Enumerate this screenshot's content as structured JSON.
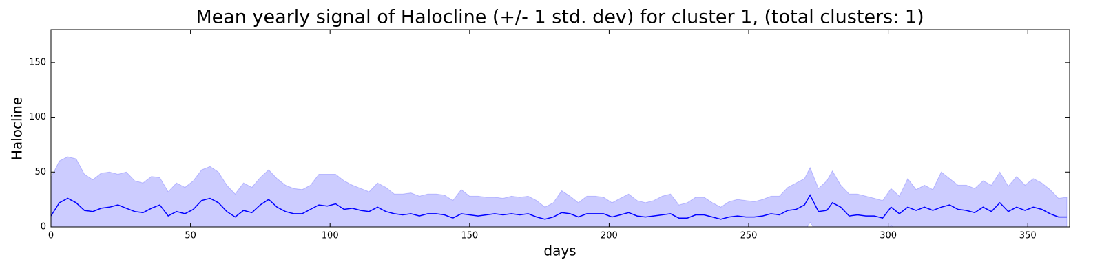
{
  "chart_data": {
    "type": "line",
    "title": "Mean yearly signal of Halocline (+/- 1 std. dev) for cluster 1, (total clusters: 1)",
    "xlabel": "days",
    "ylabel": "Halocline",
    "x": [
      0,
      3,
      6,
      9,
      12,
      15,
      18,
      21,
      24,
      27,
      30,
      33,
      36,
      39,
      42,
      45,
      48,
      51,
      54,
      57,
      60,
      63,
      66,
      69,
      72,
      75,
      78,
      81,
      84,
      87,
      90,
      93,
      96,
      99,
      102,
      105,
      108,
      111,
      114,
      117,
      120,
      123,
      126,
      129,
      132,
      135,
      138,
      141,
      144,
      147,
      150,
      153,
      156,
      159,
      162,
      165,
      168,
      171,
      174,
      177,
      180,
      183,
      186,
      189,
      192,
      195,
      198,
      201,
      204,
      207,
      210,
      213,
      216,
      219,
      222,
      225,
      228,
      231,
      234,
      237,
      240,
      243,
      246,
      249,
      252,
      255,
      258,
      261,
      264,
      267,
      270,
      272,
      275,
      278,
      280,
      283,
      286,
      289,
      292,
      295,
      298,
      301,
      304,
      307,
      310,
      313,
      316,
      319,
      322,
      325,
      328,
      331,
      334,
      337,
      340,
      343,
      346,
      349,
      352,
      355,
      358,
      361,
      364
    ],
    "series": [
      {
        "color": "#0000ff",
        "values": [
          10,
          22,
          26,
          22,
          15,
          14,
          17,
          18,
          20,
          17,
          14,
          13,
          17,
          20,
          10,
          14,
          12,
          16,
          24,
          26,
          22,
          14,
          9,
          15,
          13,
          20,
          25,
          18,
          14,
          12,
          12,
          16,
          20,
          19,
          21,
          16,
          17,
          15,
          14,
          18,
          14,
          12,
          11,
          12,
          10,
          12,
          12,
          11,
          8,
          12,
          11,
          10,
          11,
          12,
          11,
          12,
          11,
          12,
          9,
          7,
          9,
          13,
          12,
          9,
          12,
          12,
          12,
          9,
          11,
          13,
          10,
          9,
          10,
          11,
          12,
          8,
          8,
          11,
          11,
          9,
          7,
          9,
          10,
          9,
          9,
          10,
          12,
          11,
          15,
          16,
          20,
          29,
          14,
          15,
          22,
          18,
          10,
          11,
          10,
          10,
          8,
          18,
          12,
          18,
          15,
          18,
          15,
          18,
          20,
          16,
          15,
          13,
          18,
          14,
          22,
          14,
          18,
          15,
          18,
          16,
          12,
          9,
          9
        ],
        "std": [
          35,
          38,
          38,
          40,
          33,
          29,
          32,
          32,
          28,
          33,
          28,
          27,
          29,
          25,
          22,
          26,
          24,
          26,
          28,
          29,
          28,
          24,
          21,
          25,
          23,
          25,
          27,
          26,
          24,
          23,
          22,
          22,
          28,
          29,
          27,
          26,
          21,
          20,
          18,
          22,
          22,
          18,
          19,
          19,
          18,
          18,
          18,
          18,
          16,
          22,
          17,
          18,
          16,
          15,
          15,
          16,
          16,
          16,
          15,
          11,
          13,
          20,
          16,
          13,
          16,
          16,
          15,
          13,
          15,
          17,
          14,
          13,
          14,
          17,
          18,
          12,
          14,
          16,
          16,
          13,
          11,
          14,
          15,
          15,
          14,
          15,
          16,
          17,
          21,
          24,
          24,
          25,
          21,
          27,
          29,
          20,
          20,
          19,
          18,
          16,
          16,
          17,
          16,
          26,
          19,
          20,
          19,
          32,
          24,
          22,
          23,
          22,
          24,
          24,
          28,
          23,
          28,
          23,
          26,
          24,
          22,
          17,
          18
        ]
      }
    ],
    "xlim": [
      0,
      365
    ],
    "xticks": [
      0,
      50,
      100,
      150,
      200,
      250,
      300,
      350
    ],
    "ylim": [
      0,
      180
    ],
    "yticks": [
      0,
      50,
      100,
      150
    ],
    "grid": false
  }
}
